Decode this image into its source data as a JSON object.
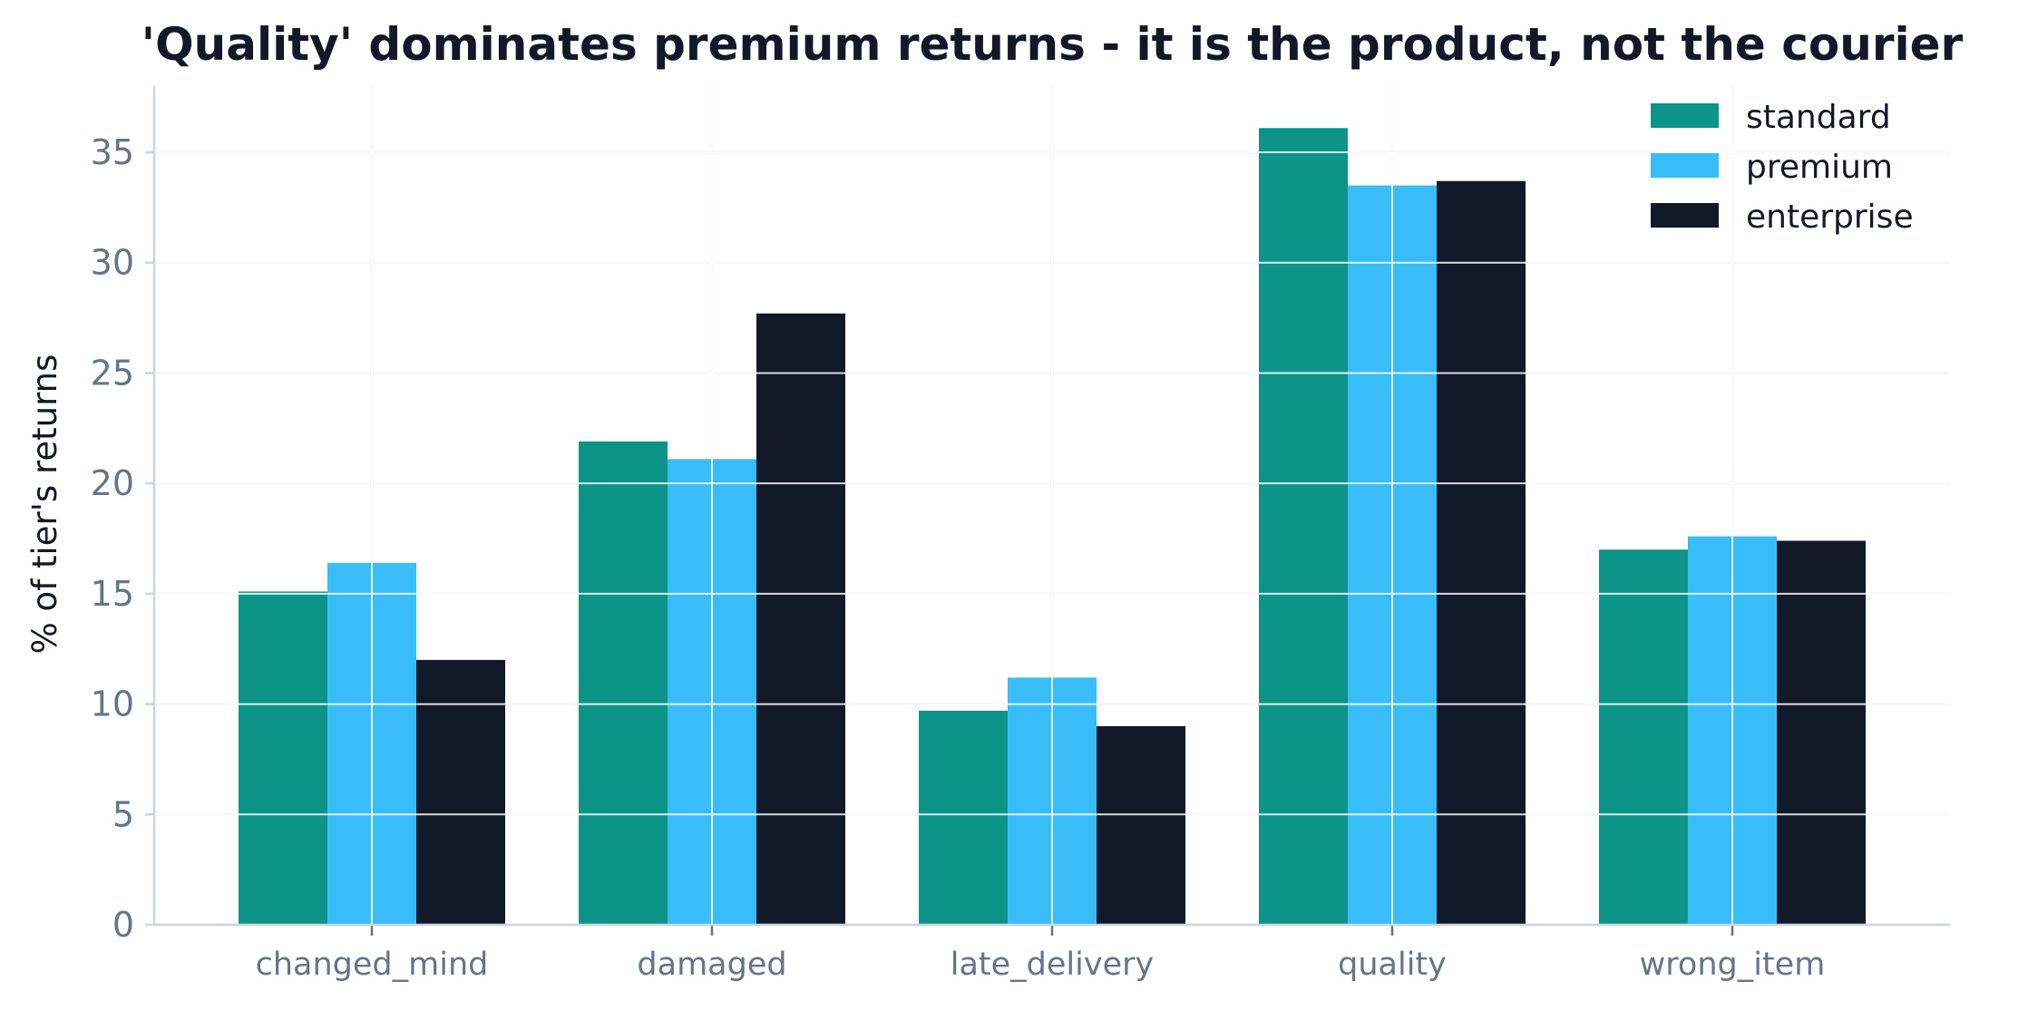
{
  "chart_data": {
    "type": "bar",
    "title": "'Quality' dominates premium returns - it is the product, not the courier",
    "xlabel": "",
    "ylabel": "% of tier's returns",
    "categories": [
      "changed_mind",
      "damaged",
      "late_delivery",
      "quality",
      "wrong_item"
    ],
    "series": [
      {
        "name": "standard",
        "color": "#0d9488",
        "values": [
          15.1,
          21.9,
          9.7,
          36.1,
          17.0
        ]
      },
      {
        "name": "premium",
        "color": "#38bdf8",
        "values": [
          16.4,
          21.1,
          11.2,
          33.5,
          17.6
        ]
      },
      {
        "name": "enterprise",
        "color": "#111827",
        "values": [
          12.0,
          27.7,
          9.0,
          33.7,
          17.4
        ]
      }
    ],
    "ylim": [
      0,
      38
    ],
    "yticks": [
      0,
      5,
      10,
      15,
      20,
      25,
      30,
      35
    ],
    "grid": true,
    "legend_position": "top-right",
    "colors": {
      "grid": "#e2e8f0",
      "axis": "#cbd5e1",
      "tick_text": "#64748b",
      "text": "#111827"
    }
  }
}
